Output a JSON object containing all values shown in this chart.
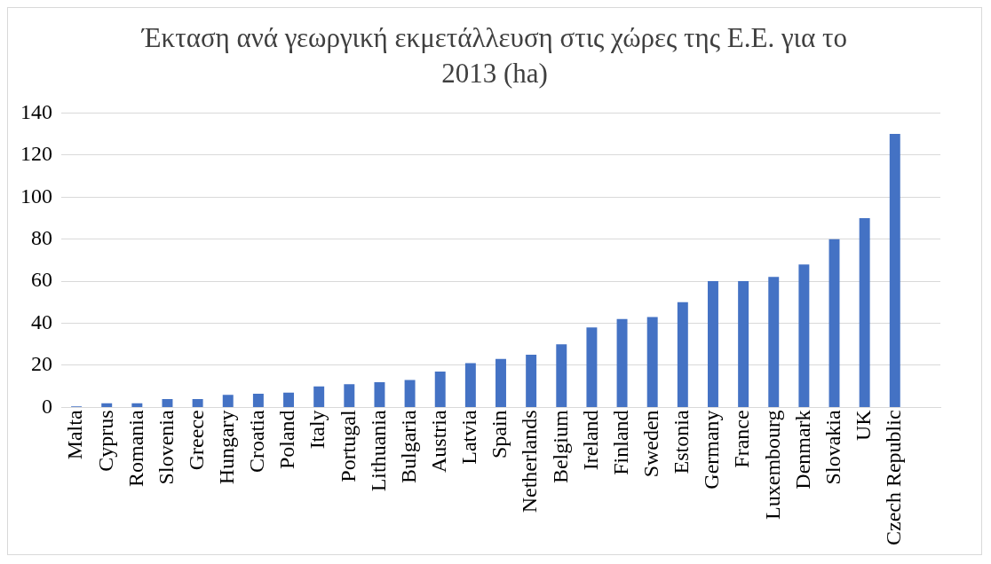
{
  "chart_data": {
    "type": "bar",
    "title": "Έκταση ανά γεωργική εκμετάλλευση στις χώρες της Ε.Ε. για το 2013 (ha)",
    "categories": [
      "Malta",
      "Cyprus",
      "Romania",
      "Slovenia",
      "Greece",
      "Hungary",
      "Croatia",
      "Poland",
      "Italy",
      "Portugal",
      "Lithuania",
      "Bulgaria",
      "Austria",
      "Latvia",
      "Spain",
      "Netherlands",
      "Belgium",
      "Ireland",
      "Finland",
      "Sweden",
      "Estonia",
      "Germany",
      "France",
      "Luxembourg",
      "Denmark",
      "Slovakia",
      "UK",
      "Czech Republic",
      null
    ],
    "values": [
      0.5,
      2,
      2,
      4,
      4,
      6,
      6.5,
      7,
      10,
      11,
      12,
      13,
      17,
      21,
      23,
      25,
      30,
      38,
      42,
      43,
      50,
      60,
      60,
      62,
      68,
      80,
      90,
      130,
      null
    ],
    "color": "#4472c4",
    "ylim": [
      0,
      140
    ],
    "yticks": [
      0,
      20,
      40,
      60,
      80,
      100,
      120,
      140
    ],
    "grid": "y"
  }
}
